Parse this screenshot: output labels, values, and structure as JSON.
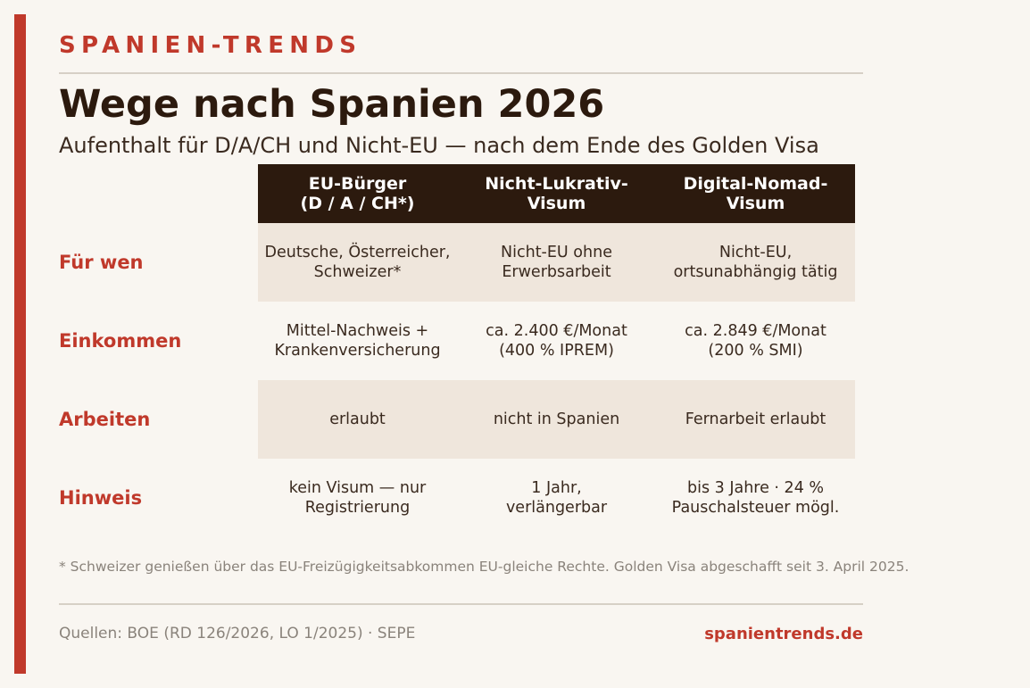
{
  "header": {
    "brand": "SPANIEN-TRENDS",
    "title": "Wege nach Spanien 2026",
    "subtitle": "Aufenthalt für D/A/CH und Nicht-EU — nach dem Ende des Golden Visa"
  },
  "table": {
    "columns": [
      "EU-Bürger\n(D / A / CH*)",
      "Nicht-Lukrativ-\nVisum",
      "Digital-Nomad-\nVisum"
    ],
    "rows": [
      {
        "label": "Für wen",
        "cells": [
          "Deutsche, Österreicher,\nSchweizer*",
          "Nicht-EU ohne\nErwerbsarbeit",
          "Nicht-EU,\nortsunabhängig tätig"
        ]
      },
      {
        "label": "Einkommen",
        "cells": [
          "Mittel-Nachweis +\nKrankenversicherung",
          "ca. 2.400 €/Monat\n(400 % IPREM)",
          "ca. 2.849 €/Monat\n(200 % SMI)"
        ]
      },
      {
        "label": "Arbeiten",
        "cells": [
          "erlaubt",
          "nicht in Spanien",
          "Fernarbeit erlaubt"
        ]
      },
      {
        "label": "Hinweis",
        "cells": [
          "kein Visum — nur\nRegistrierung",
          "1 Jahr,\nverlängerbar",
          "bis 3 Jahre · 24 %\nPauschalsteuer mögl."
        ]
      }
    ]
  },
  "footnote": "* Schweizer genießen über das EU-Freizügigkeitsabkommen EU-gleiche Rechte. Golden Visa abgeschafft seit 3. April 2025.",
  "footer": {
    "sources": "Quellen: BOE (RD 126/2026, LO 1/2025) · SEPE",
    "site": "spanientrends.de"
  }
}
